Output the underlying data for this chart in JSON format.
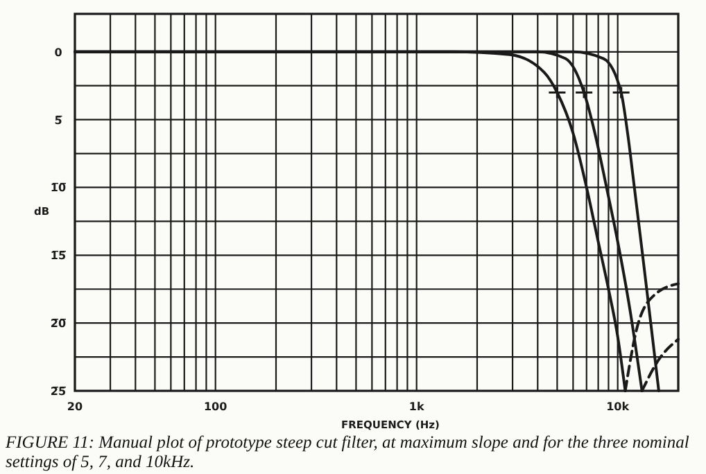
{
  "chart_data": {
    "type": "line",
    "xlabel": "FREQUENCY (Hz)",
    "ylabel": "dB",
    "log": "x",
    "grid": true,
    "color": "#1a1a1a",
    "annotations": [
      "FIGURE 11: Manual plot of prototype steep cut filter, at maximum slope and for the three nominal settings of 5, 7, and 10kHz."
    ],
    "xlim": [
      20,
      20000
    ],
    "xticks": [
      20,
      {
        "value": 30,
        "label": null
      },
      {
        "value": 40,
        "label": null
      },
      {
        "value": 50,
        "label": null
      },
      {
        "value": 60,
        "label": null
      },
      {
        "value": 70,
        "label": null
      },
      {
        "value": 80,
        "label": null
      },
      {
        "value": 90,
        "label": null
      },
      100,
      {
        "value": 200,
        "label": null
      },
      {
        "value": 300,
        "label": null
      },
      {
        "value": 400,
        "label": null
      },
      {
        "value": 500,
        "label": null
      },
      {
        "value": 600,
        "label": null
      },
      {
        "value": 700,
        "label": null
      },
      {
        "value": 800,
        "label": null
      },
      {
        "value": 900,
        "label": null
      },
      {
        "value": 1000,
        "label": "1k"
      },
      {
        "value": 2000,
        "label": null
      },
      {
        "value": 3000,
        "label": null
      },
      {
        "value": 4000,
        "label": null
      },
      {
        "value": 5000,
        "label": null
      },
      {
        "value": 6000,
        "label": null
      },
      {
        "value": 7000,
        "label": null
      },
      {
        "value": 8000,
        "label": null
      },
      {
        "value": 9000,
        "label": null
      },
      {
        "value": 10000,
        "label": "10k"
      },
      {
        "value": 20000,
        "label": null
      }
    ],
    "ylim": [
      -25,
      2.8
    ],
    "yticks": [
      0,
      {
        "value": -2.5,
        "label": null
      },
      {
        "value": -5,
        "label": "5̅"
      },
      {
        "value": -7.5,
        "label": null
      },
      {
        "value": -10,
        "label": "1̅0̅"
      },
      {
        "value": -12.5,
        "label": null
      },
      {
        "value": -15,
        "label": "1̅5̅"
      },
      {
        "value": -17.5,
        "label": null
      },
      {
        "value": -20,
        "label": "2̅0̅"
      },
      {
        "value": -22.5,
        "label": null
      },
      {
        "value": -25,
        "label": "2̅5̅"
      }
    ],
    "series": [
      {
        "color": "#1a1a1a",
        "line_style": "solid",
        "x": [
          20,
          1500,
          2900,
          4300,
          5000,
          6000,
          7000,
          8000,
          9000,
          10000,
          10900
        ],
        "values": [
          0,
          0,
          -0.2,
          -1.5,
          -3,
          -6,
          -10,
          -14,
          -17.5,
          -21,
          -25
        ]
      },
      {
        "color": "#1a1a1a",
        "line_style": "solid",
        "x": [
          20,
          4000,
          5500,
          6800,
          7700,
          8800,
          10000,
          11500,
          13200
        ],
        "values": [
          0,
          0,
          -0.5,
          -3,
          -6,
          -10,
          -14,
          -19,
          -25
        ]
      },
      {
        "color": "#1a1a1a",
        "line_style": "solid",
        "x": [
          20,
          6000,
          8500,
          10400,
          11200,
          12100,
          13300,
          14600,
          16000
        ],
        "values": [
          0,
          0,
          -0.5,
          -3,
          -6,
          -10,
          -15,
          -20,
          -25
        ]
      },
      {
        "color": "#1a1a1a",
        "line_style": "dashed",
        "x": [
          10900,
          12600,
          15300,
          20000
        ],
        "values": [
          -25,
          -20.1,
          -17.9,
          -17.1
        ]
      },
      {
        "color": "#1a1a1a",
        "line_style": "dashed",
        "x": [
          13200,
          16000,
          20000
        ],
        "values": [
          -25,
          -22.7,
          -21.2
        ]
      },
      {
        "type": "scatter",
        "marker": "cross",
        "color": "#1a1a1a",
        "x": [
          5000,
          6800,
          10400
        ],
        "values": [
          -3,
          -3,
          -3
        ]
      }
    ]
  }
}
